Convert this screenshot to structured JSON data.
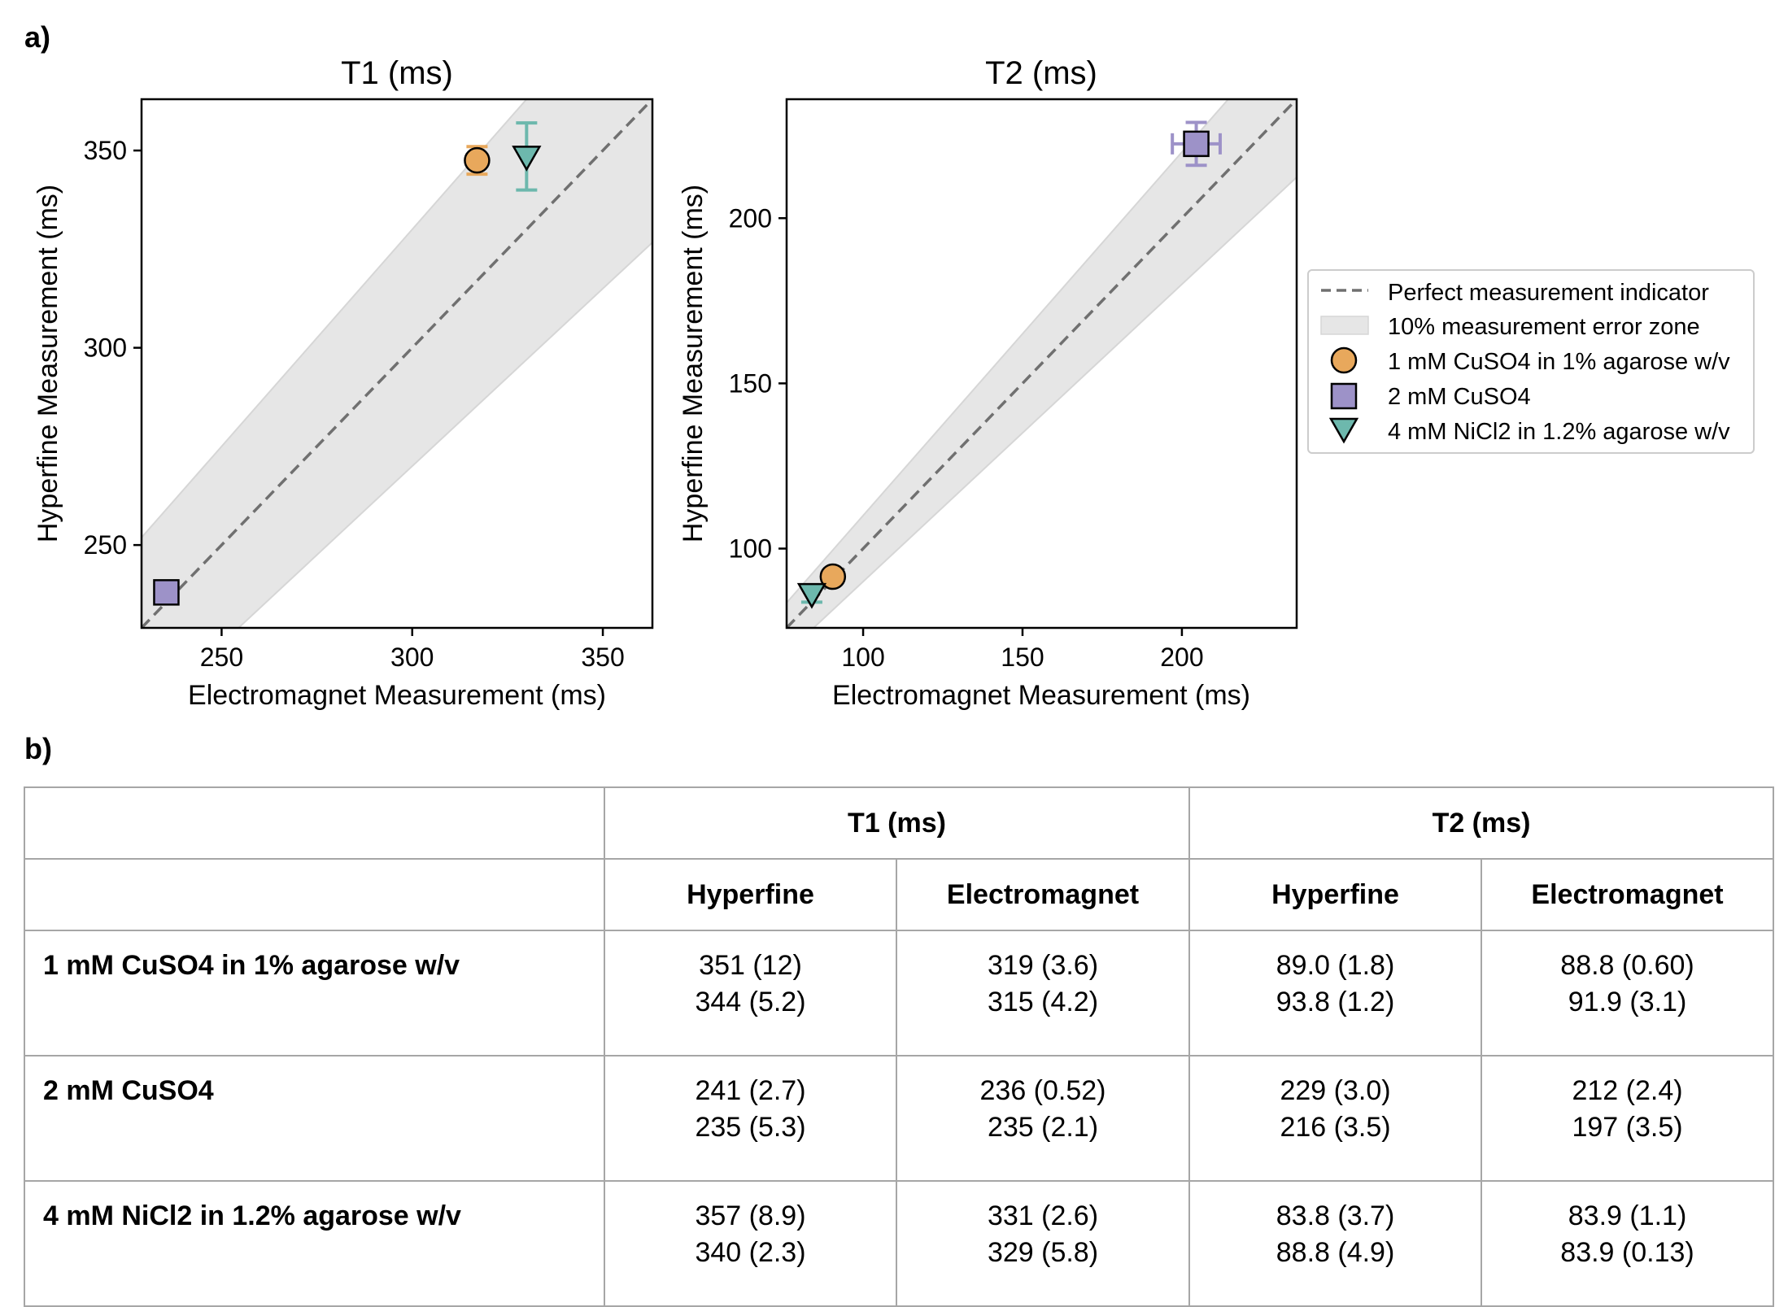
{
  "panel_labels": {
    "a": "a)",
    "b": "b)"
  },
  "chart_data": [
    {
      "type": "scatter",
      "title": "T1 (ms)",
      "xlabel": "Electromagnet Measurement (ms)",
      "ylabel": "Hyperfine Measurement (ms)",
      "xlim": [
        229,
        363
      ],
      "ylim": [
        229,
        363
      ],
      "xticks": [
        250,
        300,
        350
      ],
      "yticks": [
        250,
        300,
        350
      ],
      "error_zone_fraction": 0.1,
      "series": [
        {
          "name": "1 mM CuSO4 in 1% agarose w/v",
          "marker": "circle",
          "color": "#E8A85C",
          "x": 317,
          "y": 347.5,
          "yerr": 3.5,
          "xerr": 0
        },
        {
          "name": "2 mM CuSO4",
          "marker": "square",
          "color": "#9D92C8",
          "x": 235.5,
          "y": 238,
          "yerr": 0,
          "xerr": 0
        },
        {
          "name": "4 mM NiCl2 in 1.2% agarose w/v",
          "marker": "triangle",
          "color": "#6DB8AD",
          "x": 330,
          "y": 348.5,
          "yerr": 8.5,
          "xerr": 0
        }
      ]
    },
    {
      "type": "scatter",
      "title": "T2 (ms)",
      "xlabel": "Electromagnet Measurement (ms)",
      "ylabel": "Hyperfine Measurement (ms)",
      "xlim": [
        76,
        236
      ],
      "ylim": [
        76,
        236
      ],
      "xticks": [
        100,
        150,
        200
      ],
      "yticks": [
        100,
        150,
        200
      ],
      "error_zone_fraction": 0.1,
      "series": [
        {
          "name": "1 mM CuSO4 in 1% agarose w/v",
          "marker": "circle",
          "color": "#E8A85C",
          "x": 90.5,
          "y": 91.5,
          "yerr": 0,
          "xerr": 0
        },
        {
          "name": "2 mM CuSO4",
          "marker": "square",
          "color": "#9D92C8",
          "x": 204.5,
          "y": 222.5,
          "yerr": 6.5,
          "xerr": 7.5
        },
        {
          "name": "4 mM NiCl2 in 1.2% agarose w/v",
          "marker": "triangle",
          "color": "#6DB8AD",
          "x": 83.9,
          "y": 86.3,
          "yerr": 2.5,
          "xerr": 0
        }
      ]
    }
  ],
  "legend": {
    "perfect": "Perfect measurement indicator",
    "zone": "10% measurement error zone",
    "s1": "1 mM CuSO4 in 1% agarose w/v",
    "s2": "2 mM CuSO4",
    "s3": "4 mM NiCl2 in 1.2% agarose w/v"
  },
  "table": {
    "group_headers": [
      "T1 (ms)",
      "T2 (ms)"
    ],
    "sub_headers": [
      "Hyperfine",
      "Electromagnet",
      "Hyperfine",
      "Electromagnet"
    ],
    "rows": [
      {
        "name": "1 mM CuSO4 in 1% agarose w/v",
        "cells": [
          [
            "351 (12)",
            "344 (5.2)"
          ],
          [
            "319 (3.6)",
            "315 (4.2)"
          ],
          [
            "89.0 (1.8)",
            "93.8 (1.2)"
          ],
          [
            "88.8 (0.60)",
            "91.9 (3.1)"
          ]
        ]
      },
      {
        "name": "2 mM CuSO4",
        "cells": [
          [
            "241 (2.7)",
            "235 (5.3)"
          ],
          [
            "236 (0.52)",
            "235 (2.1)"
          ],
          [
            "229 (3.0)",
            "216 (3.5)"
          ],
          [
            "212 (2.4)",
            "197 (3.5)"
          ]
        ]
      },
      {
        "name": "4 mM NiCl2 in 1.2% agarose w/v",
        "cells": [
          [
            "357 (8.9)",
            "340 (2.3)"
          ],
          [
            "331 (2.6)",
            "329 (5.8)"
          ],
          [
            "83.8 (3.7)",
            "88.8 (4.9)"
          ],
          [
            "83.9 (1.1)",
            "83.9 (0.13)"
          ]
        ]
      }
    ]
  }
}
